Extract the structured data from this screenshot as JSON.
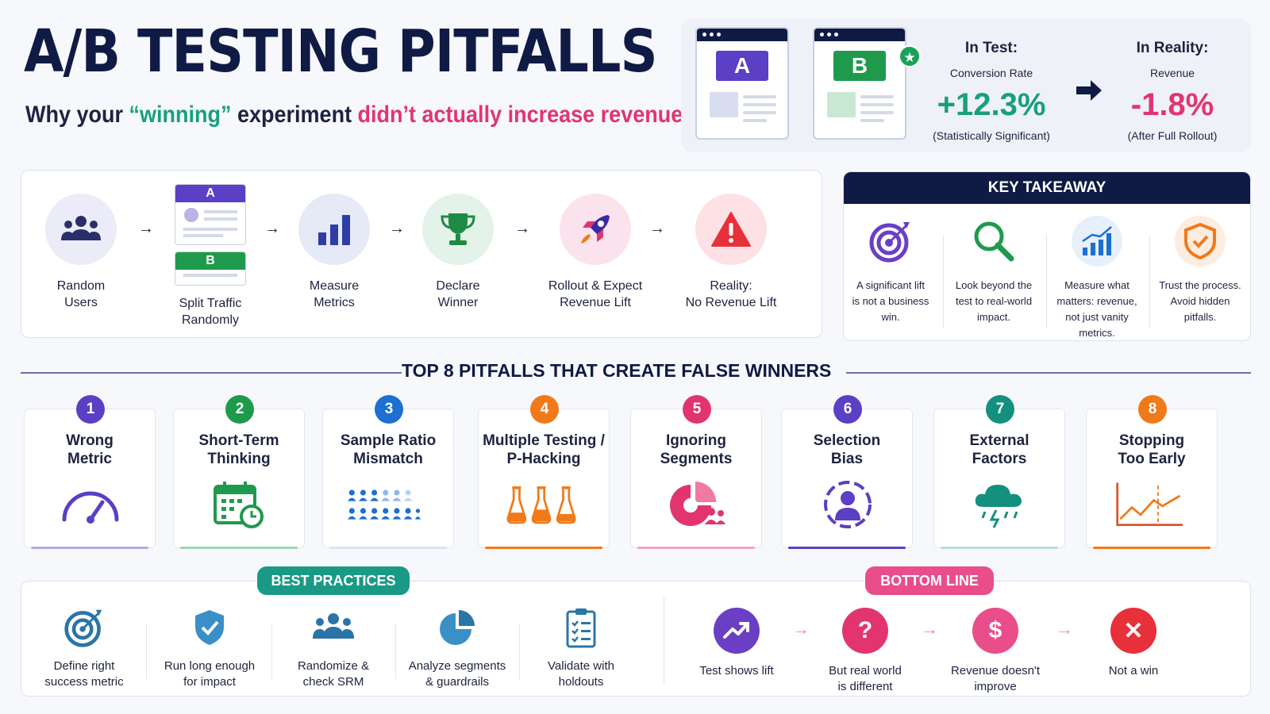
{
  "header": {
    "title": "A/B TESTING PITFALLS",
    "subtitle_part1": "Why your ",
    "subtitle_win": "“winning”",
    "subtitle_part2": " experiment ",
    "subtitle_red": "didn’t actually increase revenue."
  },
  "hero": {
    "variant_a": "A",
    "variant_b": "B",
    "test_heading": "In Test:",
    "test_metric": "Conversion Rate",
    "test_value": "+12.3%",
    "test_note": "(Statistically Significant)",
    "reality_heading": "In Reality:",
    "reality_metric": "Revenue",
    "reality_value": "-1.8%",
    "reality_note": "(After Full Rollout)",
    "colors": {
      "a": "#5b3fc4",
      "b": "#1f9a4c",
      "positive": "#17a07c",
      "negative": "#e2356f"
    }
  },
  "process": {
    "steps": [
      {
        "label": "Random\nUsers",
        "icon": "users-icon"
      },
      {
        "label": "Split Traffic\nRandomly",
        "icon": "split-icon",
        "a": "A",
        "b": "B"
      },
      {
        "label": "Measure\nMetrics",
        "icon": "bar-chart-icon"
      },
      {
        "label": "Declare\nWinner",
        "icon": "trophy-icon"
      },
      {
        "label": "Rollout & Expect\nRevenue Lift",
        "icon": "rocket-icon"
      },
      {
        "label": "Reality:\nNo Revenue Lift",
        "icon": "warning-icon"
      }
    ]
  },
  "takeaway": {
    "heading": "KEY TAKEAWAY",
    "items": [
      {
        "text": "A significant lift\nis not a business\nwin.",
        "icon": "target-icon"
      },
      {
        "text": "Look beyond the\ntest to real-world\nimpact.",
        "icon": "magnifier-icon"
      },
      {
        "text": "Measure what\nmatters: revenue,\nnot just vanity\nmetrics.",
        "icon": "growth-chart-icon"
      },
      {
        "text": "Trust the process.\nAvoid hidden\npitfalls.",
        "icon": "shield-check-icon"
      }
    ]
  },
  "pitfalls": {
    "heading": "TOP 8 PITFALLS THAT CREATE FALSE WINNERS",
    "items": [
      {
        "num": "1",
        "label": "Wrong\nMetric",
        "icon": "gauge-icon",
        "color": "#5b3fc4"
      },
      {
        "num": "2",
        "label": "Short-Term\nThinking",
        "icon": "calendar-clock-icon",
        "color": "#1f9a4c"
      },
      {
        "num": "3",
        "label": "Sample Ratio\nMismatch",
        "icon": "people-grid-icon",
        "color": "#1d6fd1"
      },
      {
        "num": "4",
        "label": "Multiple Testing /\nP-Hacking",
        "icon": "flasks-icon",
        "color": "#f07a1a"
      },
      {
        "num": "5",
        "label": "Ignoring\nSegments",
        "icon": "pie-segment-icon",
        "color": "#e2356f"
      },
      {
        "num": "6",
        "label": "Selection\nBias",
        "icon": "user-target-icon",
        "color": "#5b3fc4"
      },
      {
        "num": "7",
        "label": "External\nFactors",
        "icon": "storm-cloud-icon",
        "color": "#13907e"
      },
      {
        "num": "8",
        "label": "Stopping\nToo Early",
        "icon": "line-chart-icon",
        "color": "#f07a1a"
      }
    ]
  },
  "best_practices": {
    "heading": "BEST PRACTICES",
    "items": [
      {
        "text": "Define right\nsuccess metric",
        "icon": "target-icon"
      },
      {
        "text": "Run long enough\nfor impact",
        "icon": "shield-check-icon"
      },
      {
        "text": "Randomize &\ncheck SRM",
        "icon": "group-icon"
      },
      {
        "text": "Analyze segments\n& guardrails",
        "icon": "pie-icon"
      },
      {
        "text": "Validate with\nholdouts",
        "icon": "checklist-icon"
      }
    ]
  },
  "bottom_line": {
    "heading": "BOTTOM LINE",
    "items": [
      {
        "text": "Test shows lift",
        "symbol": "",
        "icon": "trend-up-icon",
        "color": "#6a3fc4"
      },
      {
        "text": "But real world\nis different",
        "symbol": "?",
        "icon": "question-icon",
        "color": "#e2356f"
      },
      {
        "text": "Revenue doesn't\nimprove",
        "symbol": "$",
        "icon": "dollar-icon",
        "color": "#e94d8a"
      },
      {
        "text": "Not a win",
        "symbol": "✕",
        "icon": "x-icon",
        "color": "#e8303a"
      }
    ]
  }
}
